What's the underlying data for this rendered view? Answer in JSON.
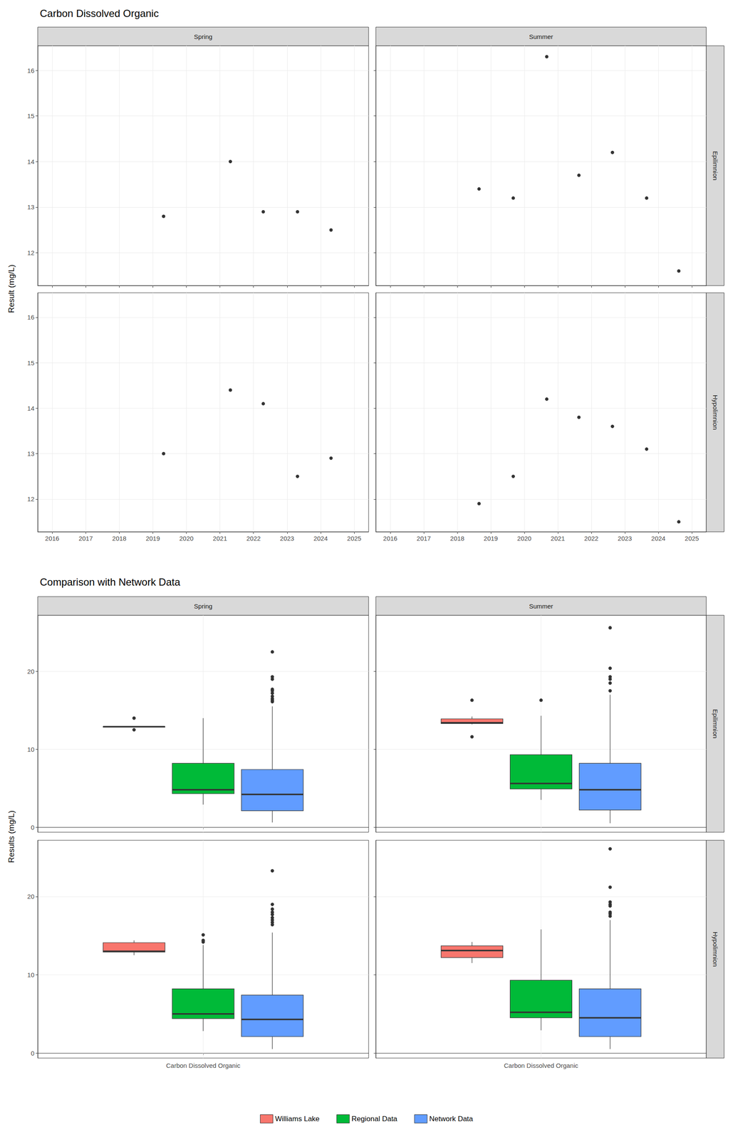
{
  "chart_data": [
    {
      "type": "scatter",
      "title": "Carbon Dissolved Organic",
      "y_label": "Result (mg/L)",
      "columns": [
        "Spring",
        "Summer"
      ],
      "rows": [
        "Epilimnion",
        "Hypolimnion"
      ],
      "xlim": [
        2015.57,
        2025.43
      ],
      "xticks": [
        2016,
        2017,
        2018,
        2019,
        2020,
        2021,
        2022,
        2023,
        2024,
        2025
      ],
      "ylim": [
        11.28,
        16.54
      ],
      "yticks": [
        12,
        13,
        14,
        15,
        16
      ],
      "grid": true,
      "color": "#000000",
      "panels": [
        {
          "column": "Spring",
          "row": "Epilimnion",
          "x": [
            2019.32,
            2021.31,
            2022.29,
            2023.31,
            2024.31
          ],
          "values": [
            12.8,
            14.0,
            12.9,
            12.9,
            12.5
          ]
        },
        {
          "column": "Summer",
          "row": "Epilimnion",
          "x": [
            2018.65,
            2019.67,
            2020.67,
            2021.63,
            2022.63,
            2023.65,
            2024.61
          ],
          "values": [
            13.4,
            13.2,
            16.3,
            13.7,
            14.2,
            13.2,
            11.6
          ]
        },
        {
          "column": "Spring",
          "row": "Hypolimnion",
          "x": [
            2019.32,
            2021.31,
            2022.29,
            2023.31,
            2024.31
          ],
          "values": [
            13.0,
            14.4,
            14.1,
            12.5,
            12.9
          ]
        },
        {
          "column": "Summer",
          "row": "Hypolimnion",
          "x": [
            2018.65,
            2019.67,
            2020.67,
            2021.63,
            2022.63,
            2023.65,
            2024.61
          ],
          "values": [
            11.9,
            12.5,
            14.2,
            13.8,
            13.6,
            13.1,
            11.5
          ]
        }
      ]
    },
    {
      "type": "boxplot",
      "title": "Comparison with Network Data",
      "y_label": "Results (mg/L)",
      "columns": [
        "Spring",
        "Summer"
      ],
      "rows": [
        "Epilimnion",
        "Hypolimnion"
      ],
      "categories": [
        "Carbon Dissolved Organic"
      ],
      "ylim": [
        -0.65,
        27.2
      ],
      "yticks": [
        0,
        10,
        20
      ],
      "grid": true,
      "legend": "bottom",
      "series": [
        {
          "name": "Williams Lake",
          "color": "#F8766D"
        },
        {
          "name": "Regional Data",
          "color": "#00BA38"
        },
        {
          "name": "Network Data",
          "color": "#619CFF"
        }
      ],
      "panels": [
        {
          "column": "Spring",
          "row": "Epilimnion",
          "boxes": [
            {
              "min": 12.8,
              "q1": 12.85,
              "median": 12.9,
              "q3": 12.9,
              "max": 12.9,
              "outliers": [
                14.0,
                12.5
              ]
            },
            {
              "min": 2.9,
              "q1": 4.3,
              "median": 4.8,
              "q3": 8.2,
              "max": 14.0,
              "outliers": []
            },
            {
              "min": 0.6,
              "q1": 2.1,
              "median": 4.2,
              "q3": 7.4,
              "max": 15.5,
              "outliers": [
                16.1,
                16.3,
                16.5,
                16.8,
                17.2,
                17.5,
                17.7,
                19.0,
                19.3,
                22.5
              ]
            }
          ]
        },
        {
          "column": "Summer",
          "row": "Epilimnion",
          "boxes": [
            {
              "min": 13.2,
              "q1": 13.3,
              "median": 13.4,
              "q3": 13.9,
              "max": 14.2,
              "outliers": [
                16.3,
                11.6
              ]
            },
            {
              "min": 3.5,
              "q1": 4.9,
              "median": 5.6,
              "q3": 9.3,
              "max": 14.3,
              "outliers": [
                16.3
              ]
            },
            {
              "min": 0.5,
              "q1": 2.2,
              "median": 4.8,
              "q3": 8.2,
              "max": 17.0,
              "outliers": [
                17.5,
                18.5,
                19.0,
                19.3,
                20.4,
                25.6
              ]
            }
          ]
        },
        {
          "column": "Spring",
          "row": "Hypolimnion",
          "boxes": [
            {
              "min": 12.5,
              "q1": 12.9,
              "median": 13.0,
              "q3": 14.1,
              "max": 14.4,
              "outliers": []
            },
            {
              "min": 2.8,
              "q1": 4.4,
              "median": 5.0,
              "q3": 8.2,
              "max": 13.8,
              "outliers": [
                14.2,
                14.4,
                15.1
              ]
            },
            {
              "min": 0.5,
              "q1": 2.1,
              "median": 4.3,
              "q3": 7.4,
              "max": 15.4,
              "outliers": [
                16.4,
                16.7,
                17.0,
                17.3,
                17.7,
                18.0,
                18.4,
                19.0,
                23.3
              ]
            }
          ]
        },
        {
          "column": "Summer",
          "row": "Hypolimnion",
          "boxes": [
            {
              "min": 11.5,
              "q1": 12.2,
              "median": 13.1,
              "q3": 13.7,
              "max": 14.2,
              "outliers": []
            },
            {
              "min": 2.9,
              "q1": 4.5,
              "median": 5.2,
              "q3": 9.3,
              "max": 15.8,
              "outliers": []
            },
            {
              "min": 0.5,
              "q1": 2.1,
              "median": 4.5,
              "q3": 8.2,
              "max": 17.0,
              "outliers": [
                17.5,
                17.8,
                18.0,
                18.8,
                19.0,
                19.3,
                21.2,
                26.1
              ]
            }
          ]
        }
      ]
    }
  ]
}
